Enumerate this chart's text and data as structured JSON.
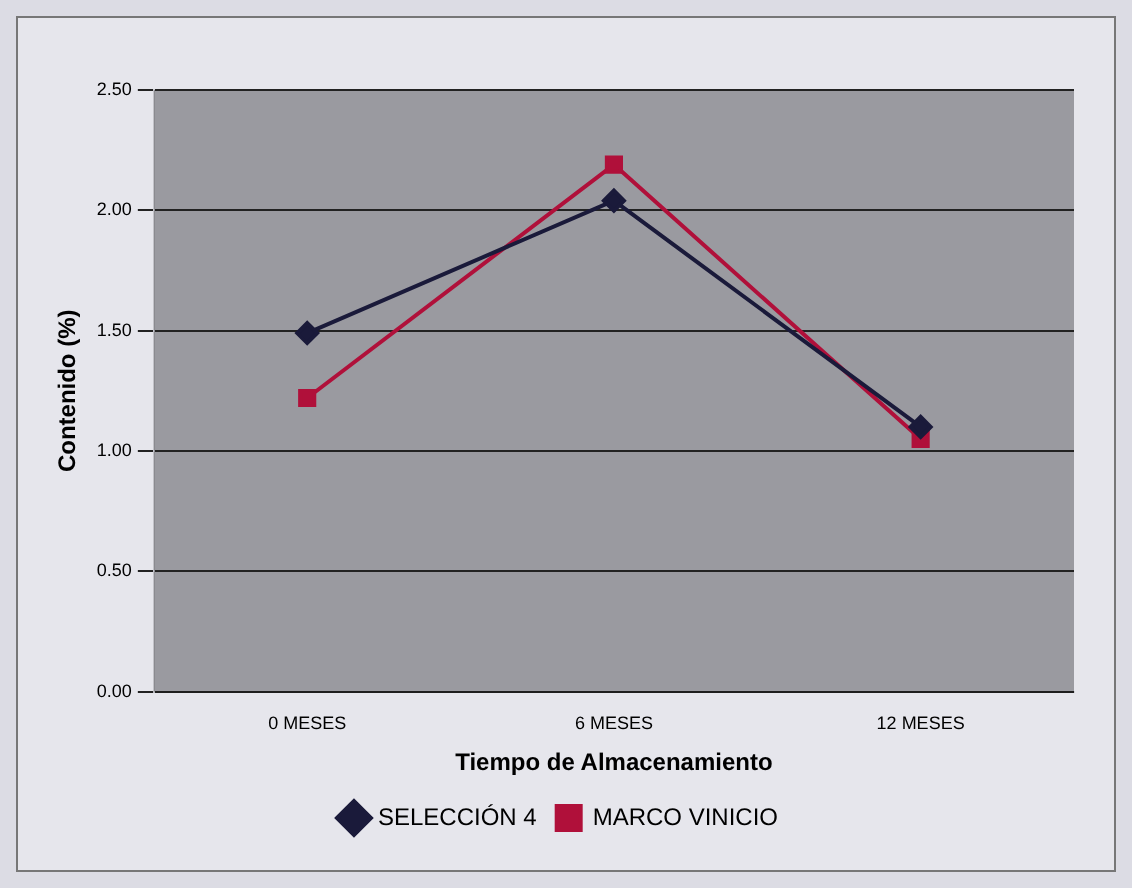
{
  "chart_data": {
    "type": "line",
    "xlabel": "Tiempo de Almacenamiento",
    "ylabel": "Contenido (%)",
    "categories": [
      "0 MESES",
      "6 MESES",
      "12 MESES"
    ],
    "series": [
      {
        "name": "SELECCIÓN 4",
        "color": "#1a1a3a",
        "values": [
          1.49,
          2.04,
          1.1
        ],
        "marker": "diamond"
      },
      {
        "name": "MARCO VINICIO",
        "color": "#b0103a",
        "values": [
          1.22,
          2.19,
          1.05
        ],
        "marker": "square"
      }
    ],
    "ylim": [
      0,
      2.5
    ],
    "yticks": [
      {
        "value": 0,
        "label": "0.00"
      },
      {
        "value": 0.5,
        "label": "0.50"
      },
      {
        "value": 1,
        "label": "1.00"
      },
      {
        "value": 1.5,
        "label": "1.50"
      },
      {
        "value": 2,
        "label": "2.00"
      },
      {
        "value": 2.5,
        "label": "2.50"
      }
    ],
    "grid": "y",
    "legend": "bottom",
    "line_style": "solid"
  }
}
